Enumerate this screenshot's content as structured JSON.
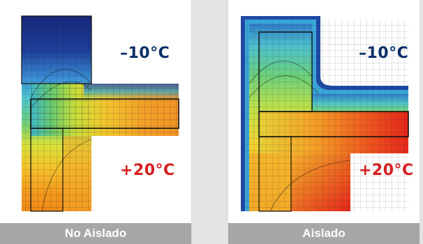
{
  "panels": [
    {
      "cold_label": "–10°C",
      "hot_label": "+20°C",
      "caption": "No Aislado"
    },
    {
      "cold_label": "–10°C",
      "hot_label": "+20°C",
      "caption": "Aislado"
    }
  ],
  "colors": {
    "cold_text": "#0a2f68",
    "hot_text": "#d51e1e",
    "caption_bg": "#a7a7a7",
    "background": "#e3e3e1"
  }
}
